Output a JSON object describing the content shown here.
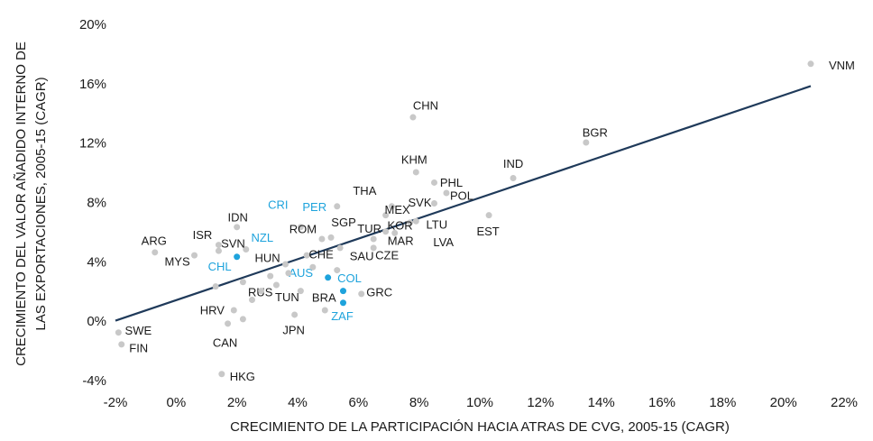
{
  "chart_data": {
    "type": "scatter",
    "xlabel": "CRECIMIENTO DE LA PARTICIPACIÓN HACIA ATRAS DE CVG, 2005-15 (CAGR)",
    "ylabel": [
      "CRECIMIENTO DEL VALOR AÑADIDO INTERNO DE",
      "LAS EXPORTACIONES, 2005-15 (CAGR)"
    ],
    "xlim": [
      -2,
      22
    ],
    "ylim": [
      -4,
      20
    ],
    "xticks": [
      {
        "value": -2,
        "label": "-2%"
      },
      {
        "value": 0,
        "label": "0%"
      },
      {
        "value": 2,
        "label": "2%"
      },
      {
        "value": 4,
        "label": "4%"
      },
      {
        "value": 6,
        "label": "6%"
      },
      {
        "value": 8,
        "label": "8%"
      },
      {
        "value": 10,
        "label": "10%"
      },
      {
        "value": 12,
        "label": "12%"
      },
      {
        "value": 14,
        "label": "14%"
      },
      {
        "value": 16,
        "label": "16%"
      },
      {
        "value": 18,
        "label": "18%"
      },
      {
        "value": 20,
        "label": "20%"
      },
      {
        "value": 22,
        "label": "22%"
      }
    ],
    "yticks": [
      {
        "value": -4,
        "label": "-4%"
      },
      {
        "value": 0,
        "label": "0%"
      },
      {
        "value": 4,
        "label": "4%"
      },
      {
        "value": 8,
        "label": "8%"
      },
      {
        "value": 12,
        "label": "12%"
      },
      {
        "value": 16,
        "label": "16%"
      },
      {
        "value": 20,
        "label": "20%"
      }
    ],
    "grid": false,
    "labels": [
      "VNM",
      "CHN",
      "BGR",
      "KHM",
      "IND",
      "PHL",
      "POL",
      "SVK",
      "EST",
      "THA",
      "MEX",
      "KOR",
      "LTU",
      "TUR",
      "MAR",
      "LVA",
      "CZE",
      "SAU",
      "SGP",
      "PER",
      "CRI",
      "IDN",
      "ROM",
      "NZL",
      "SVN",
      "ISR",
      "ARG",
      "MYS",
      "CHL",
      "HUN",
      "CHE",
      "AUS",
      "COL",
      "ZAF",
      "RUS",
      "TUN",
      "BRA",
      "GRC",
      "HRV",
      "CAN",
      "JPN",
      "HKG",
      "SWE",
      "FIN",
      null,
      null,
      null,
      null,
      null,
      null,
      null,
      null,
      null
    ],
    "x": [
      20.9,
      7.8,
      13.5,
      7.9,
      11.1,
      8.5,
      8.9,
      8.5,
      10.3,
      7.1,
      6.9,
      7.7,
      7.9,
      6.9,
      6.5,
      7.2,
      6.5,
      5.4,
      5.1,
      5.3,
      4.1,
      2.0,
      4.8,
      2.3,
      1.4,
      1.4,
      -0.7,
      0.6,
      2.0,
      3.6,
      4.3,
      5.0,
      5.5,
      5.5,
      3.1,
      4.1,
      4.9,
      6.1,
      1.9,
      1.7,
      3.9,
      1.5,
      -1.9,
      -1.8,
      1.3,
      2.2,
      2.8,
      3.7,
      3.3,
      4.5,
      2.2,
      5.3,
      2.5
    ],
    "values": [
      17.4,
      13.8,
      12.1,
      10.1,
      9.7,
      9.4,
      8.7,
      8.0,
      7.2,
      7.8,
      7.2,
      6.7,
      6.8,
      6.1,
      5.6,
      6.0,
      5.0,
      5.0,
      5.7,
      7.8,
      6.4,
      6.4,
      5.6,
      4.9,
      4.8,
      5.2,
      4.7,
      4.5,
      4.4,
      3.9,
      4.5,
      3.0,
      2.1,
      1.3,
      3.1,
      2.1,
      0.8,
      1.9,
      0.8,
      -0.1,
      0.5,
      -3.5,
      -0.7,
      -1.5,
      2.4,
      2.7,
      2.1,
      3.3,
      2.5,
      3.7,
      0.2,
      3.5,
      1.5
    ],
    "colors": [
      "#c8c8c8",
      "#c8c8c8",
      "#c8c8c8",
      "#c8c8c8",
      "#c8c8c8",
      "#c8c8c8",
      "#c8c8c8",
      "#c8c8c8",
      "#c8c8c8",
      "#c8c8c8",
      "#c8c8c8",
      "#c8c8c8",
      "#c8c8c8",
      "#c8c8c8",
      "#c8c8c8",
      "#c8c8c8",
      "#c8c8c8",
      "#c8c8c8",
      "#c8c8c8",
      "#c8c8c8",
      "#c8c8c8",
      "#c8c8c8",
      "#c8c8c8",
      "#c8c8c8",
      "#c8c8c8",
      "#c8c8c8",
      "#c8c8c8",
      "#c8c8c8",
      "#1ea3dc",
      "#c8c8c8",
      "#c8c8c8",
      "#1ea3dc",
      "#1ea3dc",
      "#1ea3dc",
      "#c8c8c8",
      "#c8c8c8",
      "#c8c8c8",
      "#c8c8c8",
      "#c8c8c8",
      "#c8c8c8",
      "#c8c8c8",
      "#c8c8c8",
      "#c8c8c8",
      "#c8c8c8",
      "#c8c8c8",
      "#c8c8c8",
      "#c8c8c8",
      "#c8c8c8",
      "#c8c8c8",
      "#c8c8c8",
      "#c8c8c8",
      "#c8c8c8",
      "#c8c8c8"
    ],
    "label_colors": [
      "#1a1a1a",
      "#1a1a1a",
      "#1a1a1a",
      "#1a1a1a",
      "#1a1a1a",
      "#1a1a1a",
      "#1a1a1a",
      "#1a1a1a",
      "#1a1a1a",
      "#1a1a1a",
      "#1a1a1a",
      "#1a1a1a",
      "#1a1a1a",
      "#1a1a1a",
      "#1a1a1a",
      "#1a1a1a",
      "#1a1a1a",
      "#1a1a1a",
      "#1a1a1a",
      "#1ea3dc",
      "#1ea3dc",
      "#1a1a1a",
      "#1a1a1a",
      "#1ea3dc",
      "#1a1a1a",
      "#1a1a1a",
      "#1a1a1a",
      "#1a1a1a",
      "#1ea3dc",
      "#1a1a1a",
      "#1a1a1a",
      "#1ea3dc",
      "#1ea3dc",
      "#1ea3dc",
      "#1a1a1a",
      "#1a1a1a",
      "#1a1a1a",
      "#1a1a1a",
      "#1a1a1a",
      "#1a1a1a",
      "#1a1a1a",
      "#1a1a1a",
      "#1a1a1a",
      "#1a1a1a",
      null,
      null,
      null,
      null,
      null,
      null,
      null,
      null,
      null
    ],
    "trendline": {
      "x": [
        -2,
        20.9
      ],
      "values": [
        0.1,
        15.9
      ],
      "color": "#1f3a5a"
    }
  }
}
